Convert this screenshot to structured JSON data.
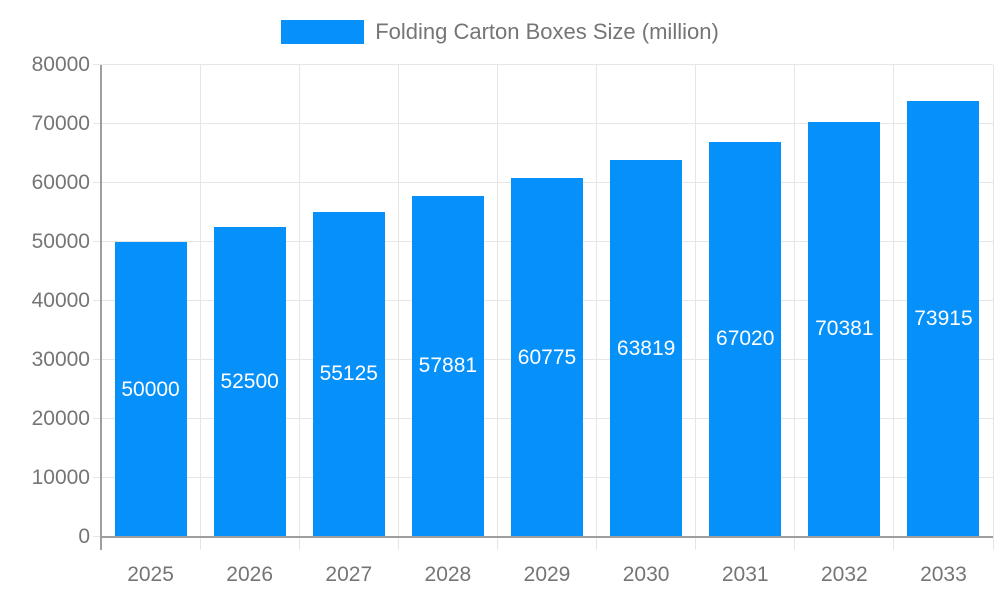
{
  "chart_data": {
    "type": "bar",
    "title": "Folding Carton Boxes Size (million)",
    "legend_entries": [
      "Folding Carton Boxes Size (million)"
    ],
    "legend_position": "top-center",
    "categories": [
      "2025",
      "2026",
      "2027",
      "2028",
      "2029",
      "2030",
      "2031",
      "2032",
      "2033"
    ],
    "series": [
      {
        "name": "Folding Carton Boxes Size (million)",
        "values": [
          50000,
          52500,
          55125,
          57881,
          60775,
          63819,
          67020,
          70381,
          73915
        ]
      }
    ],
    "value_labels": [
      "50000",
      "52500",
      "55125",
      "57881",
      "60775",
      "63819",
      "67020",
      "70381",
      "73915"
    ],
    "xlabel": "",
    "ylabel": "",
    "ylim": [
      0,
      80000
    ],
    "ytick_step": 10000,
    "ytick_labels": [
      "0",
      "10000",
      "20000",
      "30000",
      "40000",
      "50000",
      "60000",
      "70000",
      "80000"
    ],
    "grid": "horizontal and vertical, light gray",
    "colors": {
      "bar": "#0690fa",
      "value_label": "#ffffff",
      "axis_text": "#757575",
      "legend_text": "#757575",
      "gridline": "#e6e6e6",
      "axis_line": "#9e9e9e",
      "background": "#ffffff"
    }
  }
}
